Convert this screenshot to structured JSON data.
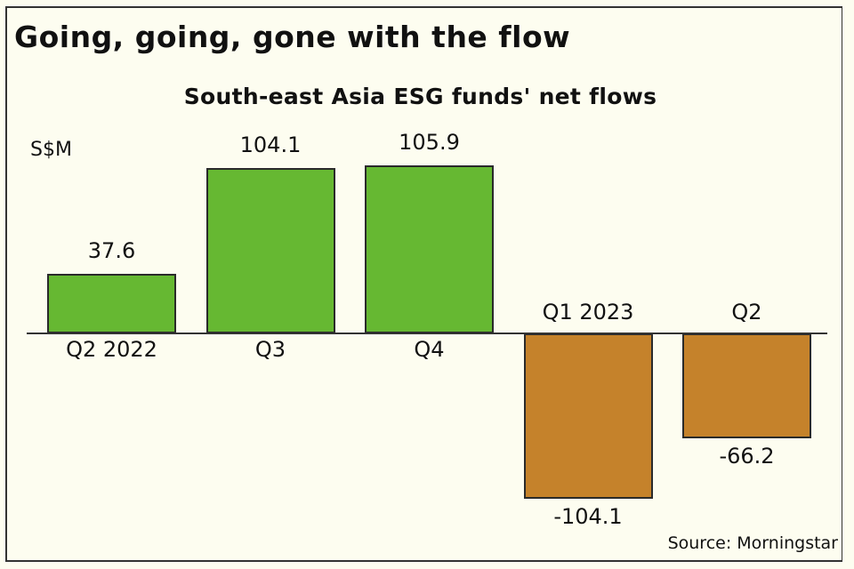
{
  "title": "Going, going, gone with the flow",
  "chart_data": {
    "type": "bar",
    "title": "South-east Asia ESG funds' net flows",
    "ylabel": "S$M",
    "xlabel": "",
    "categories": [
      "Q2 2022",
      "Q3",
      "Q4",
      "Q1 2023",
      "Q2"
    ],
    "values": [
      37.6,
      104.1,
      105.9,
      -104.1,
      -66.2
    ],
    "value_labels": [
      "37.6",
      "104.1",
      "105.9",
      "-104.1",
      "-66.2"
    ],
    "colors": {
      "positive": "#66b832",
      "negative": "#c5822b"
    },
    "grid": false,
    "legend": null
  },
  "source": "Source: Morningstar"
}
